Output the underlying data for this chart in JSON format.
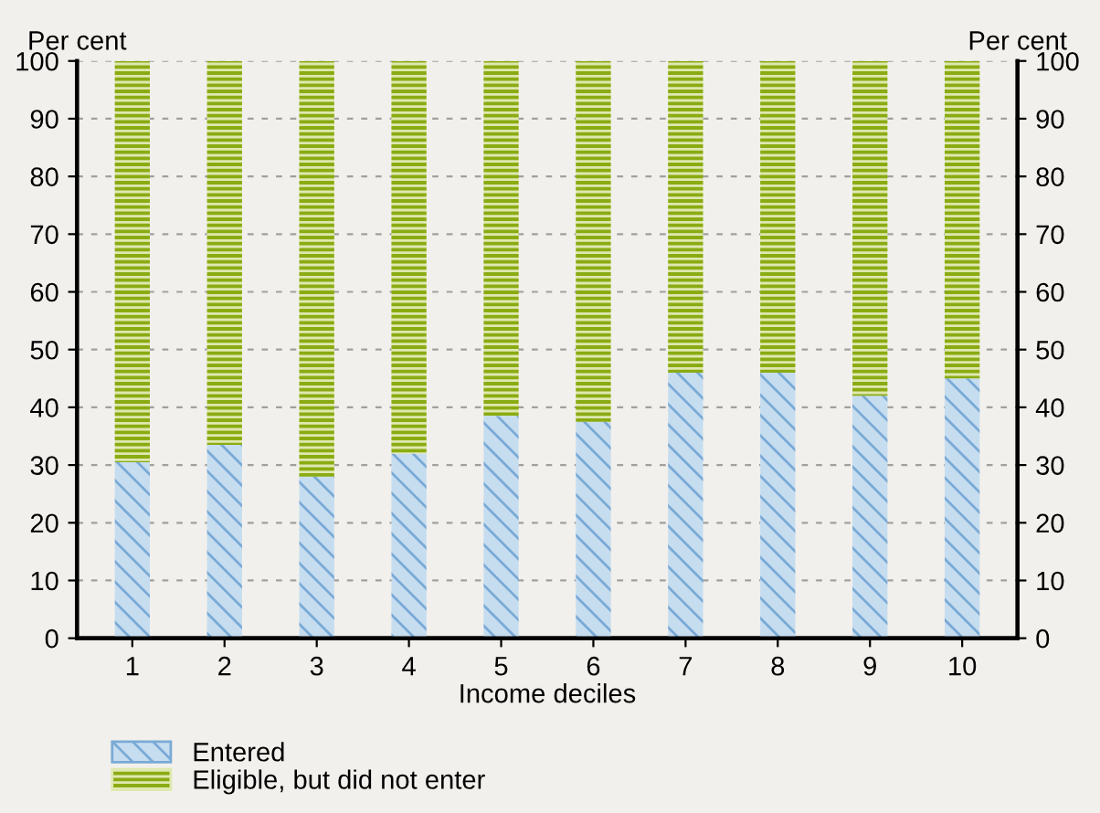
{
  "chart_data": {
    "type": "bar",
    "stacked": true,
    "xlabel": "Income deciles",
    "ylabel": "Per cent",
    "y2label": "Per cent",
    "categories": [
      "1",
      "2",
      "3",
      "4",
      "5",
      "6",
      "7",
      "8",
      "9",
      "10"
    ],
    "series": [
      {
        "name": "Entered",
        "color": "#c6ddf0",
        "values": [
          30.5,
          33.5,
          28,
          32,
          38.5,
          37.5,
          46,
          46,
          42,
          45
        ]
      },
      {
        "name": "Eligible, but did not enter",
        "color": "#8aab12",
        "values": [
          69.5,
          66.5,
          72,
          68,
          61.5,
          62.5,
          54,
          54,
          58,
          55
        ]
      }
    ],
    "ylim": [
      0,
      100
    ],
    "yticks": [
      0,
      10,
      20,
      30,
      40,
      50,
      60,
      70,
      80,
      90,
      100
    ],
    "y2lim": [
      0,
      100
    ],
    "y2ticks": [
      0,
      10,
      20,
      30,
      40,
      50,
      60,
      70,
      80,
      90,
      100
    ],
    "grid": "y",
    "legend": "bottom left"
  }
}
